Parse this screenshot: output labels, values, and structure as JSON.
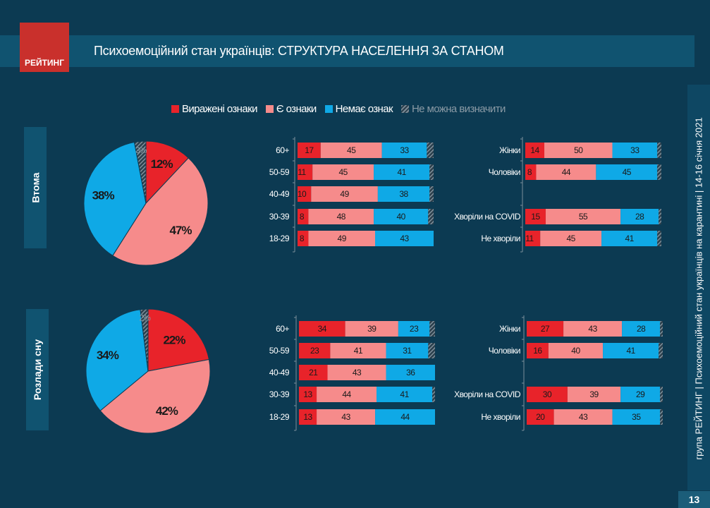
{
  "header": {
    "logo": "РЕЙТИНГ",
    "title": "Психоемоційний стан українців: СТРУКТУРА НАСЕЛЕННЯ ЗА СТАНОМ"
  },
  "footer": {
    "side_text": "група РЕЙТИНГ  |  Психоемоційний стан українців на карантині  |  14-16 січня 2021",
    "page": "13"
  },
  "legend": [
    {
      "label": "Виражені ознаки",
      "color": "#e8232a"
    },
    {
      "label": "Є ознаки",
      "color": "#f68b8b"
    },
    {
      "label": "Немає ознак",
      "color": "#0fa9e6"
    },
    {
      "label": "Не можна визначити",
      "color": "hatch"
    }
  ],
  "chart_data": [
    {
      "type": "pie",
      "section": "Втома",
      "labels": [
        "Виражені ознаки",
        "Є ознаки",
        "Немає ознак",
        "Не можна визначити"
      ],
      "values": [
        12,
        47,
        38,
        3
      ],
      "value_labels": [
        "12%",
        "47%",
        "38%",
        "3%"
      ]
    },
    {
      "type": "bar",
      "stacked": true,
      "orientation": "horizontal",
      "section": "Втома",
      "group": "age",
      "categories": [
        "60+",
        "50-59",
        "40-49",
        "30-39",
        "18-29"
      ],
      "series": [
        {
          "name": "Виражені ознаки",
          "values": [
            17,
            11,
            10,
            8,
            8
          ]
        },
        {
          "name": "Є ознаки",
          "values": [
            45,
            45,
            49,
            48,
            49
          ]
        },
        {
          "name": "Немає ознак",
          "values": [
            33,
            41,
            38,
            40,
            43
          ]
        }
      ]
    },
    {
      "type": "bar",
      "stacked": true,
      "orientation": "horizontal",
      "section": "Втома",
      "group": "other",
      "categories": [
        "Жінки",
        "Чоловіки",
        "",
        "Хворіли на COVID",
        "Не хворіли"
      ],
      "series": [
        {
          "name": "Виражені ознаки",
          "values": [
            14,
            8,
            null,
            15,
            11
          ]
        },
        {
          "name": "Є ознаки",
          "values": [
            50,
            44,
            null,
            55,
            45
          ]
        },
        {
          "name": "Немає ознак",
          "values": [
            33,
            45,
            null,
            28,
            41
          ]
        }
      ]
    },
    {
      "type": "pie",
      "section": "Розлади сну",
      "labels": [
        "Виражені ознаки",
        "Є ознаки",
        "Немає ознак",
        "Не можна визначити"
      ],
      "values": [
        22,
        42,
        34,
        2
      ],
      "value_labels": [
        "22%",
        "42%",
        "34%",
        "2%"
      ]
    },
    {
      "type": "bar",
      "stacked": true,
      "orientation": "horizontal",
      "section": "Розлади сну",
      "group": "age",
      "categories": [
        "60+",
        "50-59",
        "40-49",
        "30-39",
        "18-29"
      ],
      "series": [
        {
          "name": "Виражені ознаки",
          "values": [
            34,
            23,
            21,
            13,
            13
          ]
        },
        {
          "name": "Є ознаки",
          "values": [
            39,
            41,
            43,
            44,
            43
          ]
        },
        {
          "name": "Немає ознак",
          "values": [
            23,
            31,
            36,
            41,
            44
          ]
        }
      ]
    },
    {
      "type": "bar",
      "stacked": true,
      "orientation": "horizontal",
      "section": "Розлади сну",
      "group": "other",
      "categories": [
        "Жінки",
        "Чоловіки",
        "",
        "Хворіли на COVID",
        "Не хворіли"
      ],
      "series": [
        {
          "name": "Виражені ознаки",
          "values": [
            27,
            16,
            null,
            30,
            20
          ]
        },
        {
          "name": "Є ознаки",
          "values": [
            43,
            40,
            null,
            39,
            43
          ]
        },
        {
          "name": "Немає ознак",
          "values": [
            28,
            41,
            null,
            29,
            35
          ]
        }
      ]
    }
  ]
}
